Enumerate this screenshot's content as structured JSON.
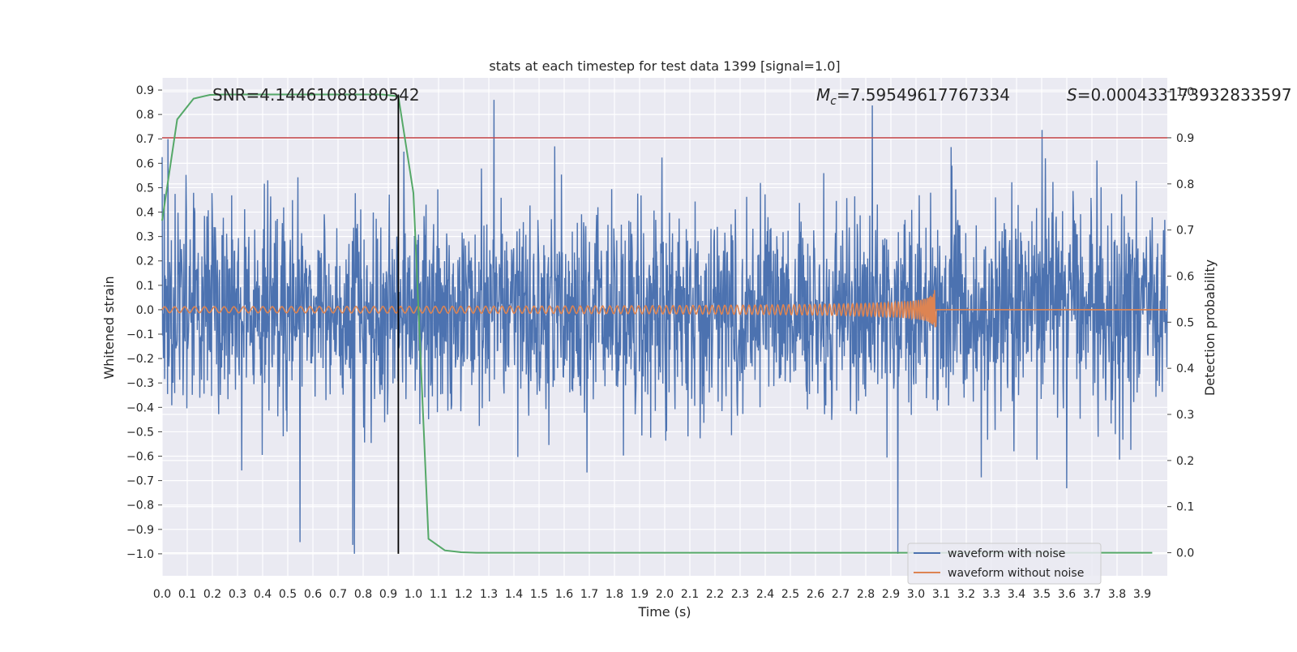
{
  "chart_data": {
    "type": "line",
    "title": "stats at each timestep for test data 1399 [signal=1.0]",
    "xlabel": "Time (s)",
    "ylabel": "Whitened strain",
    "y2label": "Detection probability",
    "xlim": [
      0.0,
      4.0
    ],
    "ylim": [
      -1.09,
      0.95
    ],
    "y2lim": [
      -0.05,
      1.03
    ],
    "x_ticks": [
      "0.0",
      "0.1",
      "0.2",
      "0.3",
      "0.4",
      "0.5",
      "0.6",
      "0.7",
      "0.8",
      "0.9",
      "1.0",
      "1.1",
      "1.2",
      "1.3",
      "1.4",
      "1.5",
      "1.6",
      "1.7",
      "1.8",
      "1.9",
      "2.0",
      "2.1",
      "2.2",
      "2.3",
      "2.4",
      "2.5",
      "2.6",
      "2.7",
      "2.8",
      "2.9",
      "3.0",
      "3.1",
      "3.2",
      "3.3",
      "3.4",
      "3.5",
      "3.6",
      "3.7",
      "3.8",
      "3.9"
    ],
    "y_ticks": [
      "0.9",
      "0.8",
      "0.7",
      "0.6",
      "0.5",
      "0.4",
      "0.3",
      "0.2",
      "0.1",
      "0.0",
      "−0.1",
      "−0.2",
      "−0.3",
      "−0.4",
      "−0.5",
      "−0.6",
      "−0.7",
      "−0.8",
      "−0.9",
      "−1.0"
    ],
    "y2_ticks": [
      "1.0",
      "0.9",
      "0.8",
      "0.7",
      "0.6",
      "0.5",
      "0.4",
      "0.3",
      "0.2",
      "0.1",
      "0.0"
    ],
    "annotations": {
      "snr": "SNR=4.14461088180542",
      "mc": "=7.59549617767334",
      "s": "=0.000433173932833597"
    },
    "threshold": {
      "value": 0.9,
      "axis": "right",
      "color": "#c44e52"
    },
    "marker_time": 0.94,
    "noisy_series": {
      "name": "waveform with noise",
      "color": "#4c72b0",
      "x_range": [
        0.0,
        4.0
      ],
      "y_min": -1.0,
      "y_max": 0.86
    },
    "clean_series": {
      "name": "waveform without noise",
      "color": "#dd8452",
      "x_range": [
        0.0,
        4.0
      ],
      "merger_time": 3.08,
      "peak_amplitude": 0.14
    },
    "probability_series": {
      "name": "detection probability",
      "color": "#55a868",
      "x": [
        0.0,
        0.06,
        0.125,
        0.19,
        0.25,
        0.31,
        0.375,
        0.44,
        0.5,
        0.56,
        0.625,
        0.69,
        0.75,
        0.81,
        0.875,
        0.94,
        1.0,
        1.06,
        1.125,
        1.19,
        1.25,
        1.5,
        2.0,
        2.5,
        3.0,
        3.5,
        3.94
      ],
      "y": [
        0.72,
        0.94,
        0.985,
        0.993,
        0.994,
        0.994,
        0.994,
        0.994,
        0.994,
        0.994,
        0.994,
        0.994,
        0.994,
        0.994,
        0.994,
        0.99,
        0.78,
        0.03,
        0.005,
        0.001,
        0.0,
        0.0,
        0.0,
        0.0,
        0.0,
        0.0,
        0.0
      ]
    },
    "legend": {
      "placement": "lower-right",
      "entries": [
        {
          "label": "waveform with noise",
          "color": "#4c72b0"
        },
        {
          "label": "waveform without noise",
          "color": "#dd8452"
        }
      ]
    }
  }
}
